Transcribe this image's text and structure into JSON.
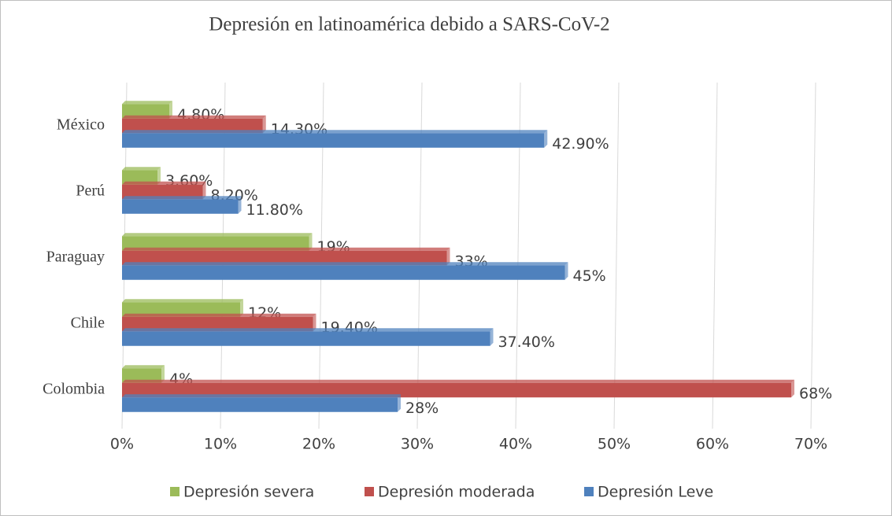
{
  "chart_data": {
    "type": "bar",
    "orientation": "horizontal",
    "title": "Depresión  en latinoamérica  debido a SARS-CoV-2",
    "categories": [
      "México",
      "Perú",
      "Paraguay",
      "Chile",
      "Colombia"
    ],
    "series": [
      {
        "name": "Depresión severa",
        "color": "#9bbb59",
        "values": [
          4.8,
          3.6,
          19,
          12,
          4
        ],
        "value_labels": [
          "4.80%",
          "3.60%",
          "19%",
          "12%",
          "4%"
        ]
      },
      {
        "name": "Depresión moderada",
        "color": "#c0504d",
        "values": [
          14.3,
          8.2,
          33,
          19.4,
          68
        ],
        "value_labels": [
          "14.30%",
          "8.20%",
          "33%",
          "19.40%",
          "68%"
        ]
      },
      {
        "name": "Depresión Leve",
        "color": "#4f81bd",
        "values": [
          42.9,
          11.8,
          45,
          37.4,
          28
        ],
        "value_labels": [
          "42.90%",
          "11.80%",
          "45%",
          "37.40%",
          "28%"
        ]
      }
    ],
    "xlim": [
      0,
      70
    ],
    "xticks": [
      {
        "value": 0,
        "label": "0%"
      },
      {
        "value": 10,
        "label": "10%"
      },
      {
        "value": 20,
        "label": "20%"
      },
      {
        "value": 30,
        "label": "30%"
      },
      {
        "value": 40,
        "label": "40%"
      },
      {
        "value": 50,
        "label": "50%"
      },
      {
        "value": 60,
        "label": "60%"
      },
      {
        "value": 70,
        "label": "70%"
      }
    ],
    "grid": true,
    "legend": "bottom"
  }
}
